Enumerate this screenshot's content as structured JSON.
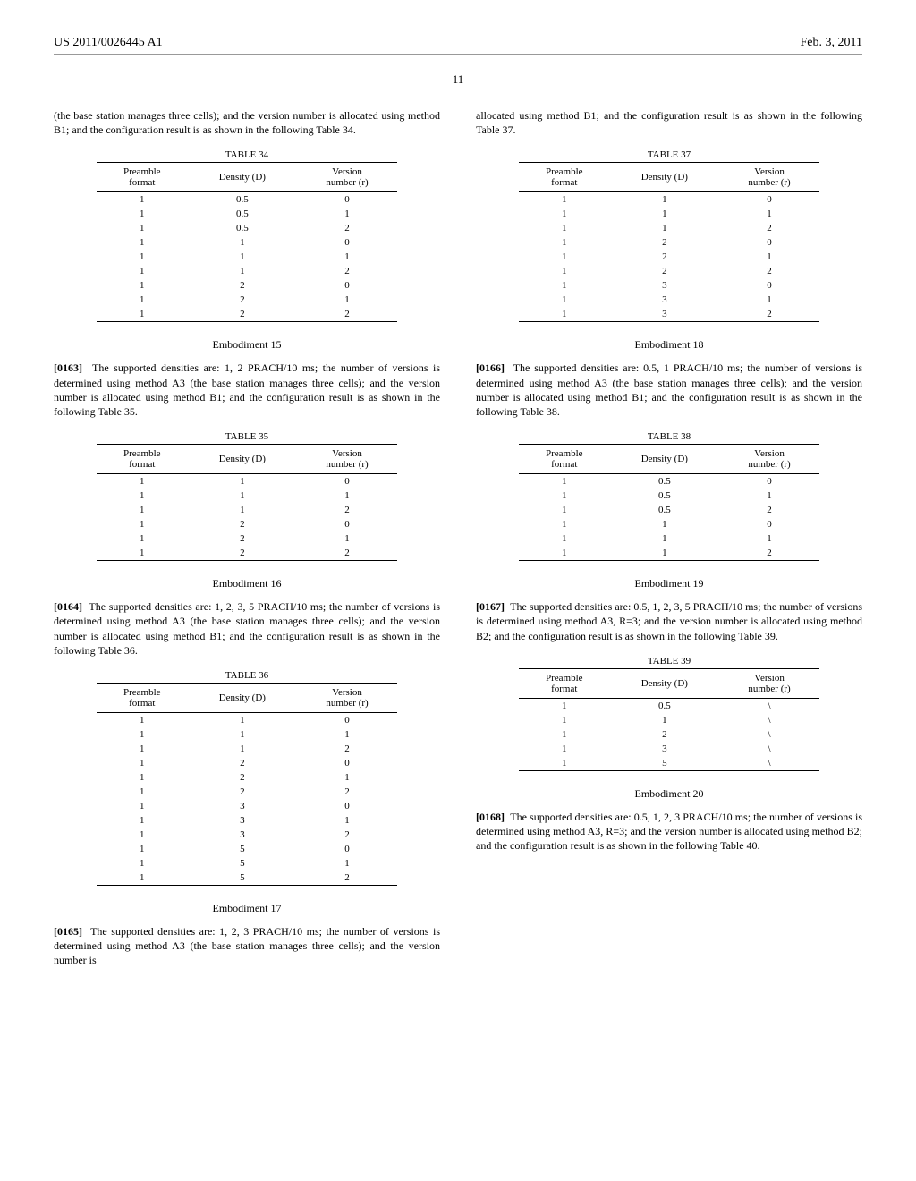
{
  "header": {
    "left": "US 2011/0026445 A1",
    "right": "Feb. 3, 2011"
  },
  "page_number": "11",
  "left_col": {
    "intro": "(the base station manages three cells); and the version number is allocated using method B1; and the configuration result is as shown in the following Table 34.",
    "table34": {
      "caption": "TABLE 34",
      "headers": [
        "Preamble\nformat",
        "Density (D)",
        "Version\nnumber (r)"
      ],
      "rows": [
        [
          "1",
          "0.5",
          "0"
        ],
        [
          "1",
          "0.5",
          "1"
        ],
        [
          "1",
          "0.5",
          "2"
        ],
        [
          "1",
          "1",
          "0"
        ],
        [
          "1",
          "1",
          "1"
        ],
        [
          "1",
          "1",
          "2"
        ],
        [
          "1",
          "2",
          "0"
        ],
        [
          "1",
          "2",
          "1"
        ],
        [
          "1",
          "2",
          "2"
        ]
      ]
    },
    "emb15": {
      "title": "Embodiment 15",
      "para_num": "[0163]",
      "text": "The supported densities are: 1, 2 PRACH/10 ms; the number of versions is determined using method A3 (the base station manages three cells); and the version number is allocated using method B1; and the configuration result is as shown in the following Table 35."
    },
    "table35": {
      "caption": "TABLE 35",
      "headers": [
        "Preamble\nformat",
        "Density (D)",
        "Version\nnumber (r)"
      ],
      "rows": [
        [
          "1",
          "1",
          "0"
        ],
        [
          "1",
          "1",
          "1"
        ],
        [
          "1",
          "1",
          "2"
        ],
        [
          "1",
          "2",
          "0"
        ],
        [
          "1",
          "2",
          "1"
        ],
        [
          "1",
          "2",
          "2"
        ]
      ]
    },
    "emb16": {
      "title": "Embodiment 16",
      "para_num": "[0164]",
      "text": "The supported densities are: 1, 2, 3, 5 PRACH/10 ms; the number of versions is determined using method A3 (the base station manages three cells); and the version number is allocated using method B1; and the configuration result is as shown in the following Table 36."
    },
    "table36": {
      "caption": "TABLE 36",
      "headers": [
        "Preamble\nformat",
        "Density (D)",
        "Version\nnumber (r)"
      ],
      "rows": [
        [
          "1",
          "1",
          "0"
        ],
        [
          "1",
          "1",
          "1"
        ],
        [
          "1",
          "1",
          "2"
        ],
        [
          "1",
          "2",
          "0"
        ],
        [
          "1",
          "2",
          "1"
        ],
        [
          "1",
          "2",
          "2"
        ],
        [
          "1",
          "3",
          "0"
        ],
        [
          "1",
          "3",
          "1"
        ],
        [
          "1",
          "3",
          "2"
        ],
        [
          "1",
          "5",
          "0"
        ],
        [
          "1",
          "5",
          "1"
        ],
        [
          "1",
          "5",
          "2"
        ]
      ]
    },
    "emb17": {
      "title": "Embodiment 17",
      "para_num": "[0165]",
      "text": "The supported densities are: 1, 2, 3 PRACH/10 ms; the number of versions is determined using method A3 (the base station manages three cells); and the version number is"
    }
  },
  "right_col": {
    "intro": "allocated using method B1; and the configuration result is as shown in the following Table 37.",
    "table37": {
      "caption": "TABLE 37",
      "headers": [
        "Preamble\nformat",
        "Density (D)",
        "Version\nnumber (r)"
      ],
      "rows": [
        [
          "1",
          "1",
          "0"
        ],
        [
          "1",
          "1",
          "1"
        ],
        [
          "1",
          "1",
          "2"
        ],
        [
          "1",
          "2",
          "0"
        ],
        [
          "1",
          "2",
          "1"
        ],
        [
          "1",
          "2",
          "2"
        ],
        [
          "1",
          "3",
          "0"
        ],
        [
          "1",
          "3",
          "1"
        ],
        [
          "1",
          "3",
          "2"
        ]
      ]
    },
    "emb18": {
      "title": "Embodiment 18",
      "para_num": "[0166]",
      "text": "The supported densities are: 0.5, 1 PRACH/10 ms; the number of versions is determined using method A3 (the base station manages three cells); and the version number is allocated using method B1; and the configuration result is as shown in the following Table 38."
    },
    "table38": {
      "caption": "TABLE 38",
      "headers": [
        "Preamble\nformat",
        "Density (D)",
        "Version\nnumber (r)"
      ],
      "rows": [
        [
          "1",
          "0.5",
          "0"
        ],
        [
          "1",
          "0.5",
          "1"
        ],
        [
          "1",
          "0.5",
          "2"
        ],
        [
          "1",
          "1",
          "0"
        ],
        [
          "1",
          "1",
          "1"
        ],
        [
          "1",
          "1",
          "2"
        ]
      ]
    },
    "emb19": {
      "title": "Embodiment 19",
      "para_num": "[0167]",
      "text": "The supported densities are: 0.5, 1, 2, 3, 5 PRACH/10 ms; the number of versions is determined using method A3, R=3; and the version number is allocated using method B2; and the configuration result is as shown in the following Table 39."
    },
    "table39": {
      "caption": "TABLE 39",
      "headers": [
        "Preamble\nformat",
        "Density (D)",
        "Version\nnumber (r)"
      ],
      "rows": [
        [
          "1",
          "0.5",
          "\\"
        ],
        [
          "1",
          "1",
          "\\"
        ],
        [
          "1",
          "2",
          "\\"
        ],
        [
          "1",
          "3",
          "\\"
        ],
        [
          "1",
          "5",
          "\\"
        ]
      ]
    },
    "emb20": {
      "title": "Embodiment 20",
      "para_num": "[0168]",
      "text": "The supported densities are: 0.5, 1, 2, 3 PRACH/10 ms; the number of versions is determined using method A3, R=3; and the version number is allocated using method B2; and the configuration result is as shown in the following Table 40."
    }
  }
}
